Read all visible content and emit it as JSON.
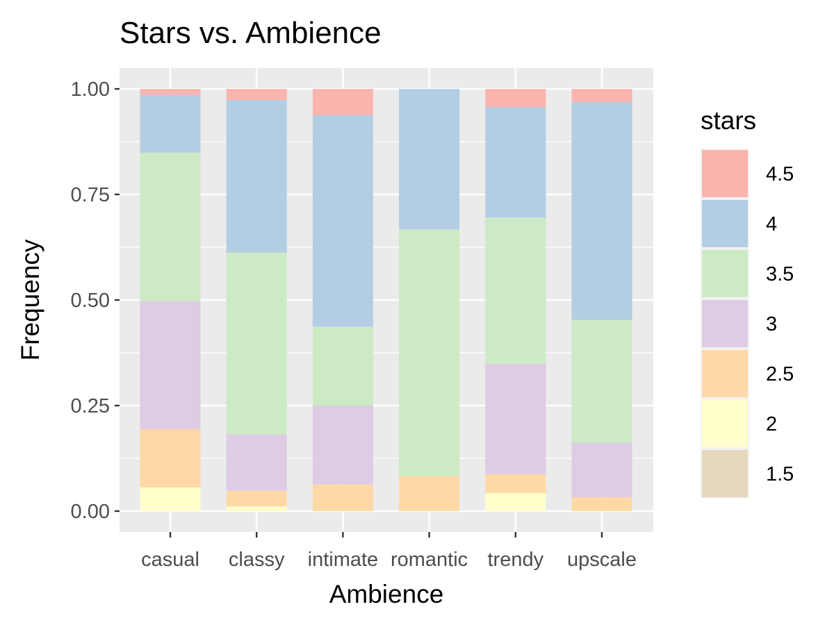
{
  "chart_data": {
    "type": "bar",
    "stacked": true,
    "title": "Stars vs. Ambience",
    "xlabel": "Ambience",
    "ylabel": "Frequency",
    "ylim": [
      0,
      1
    ],
    "yticks": [
      "0.00",
      "0.25",
      "0.50",
      "0.75",
      "1.00"
    ],
    "categories": [
      "casual",
      "classy",
      "intimate",
      "romantic",
      "trendy",
      "upscale"
    ],
    "legend_title": "stars",
    "legend_position": "right",
    "grid": true,
    "series": [
      {
        "name": "1.5",
        "color": "#E5D8BD",
        "values": [
          0.0,
          0.0,
          0.0,
          0.0,
          0.0,
          0.0
        ]
      },
      {
        "name": "2",
        "color": "#FFFFCC",
        "values": [
          0.056,
          0.011,
          0.0,
          0.0,
          0.043,
          0.0
        ]
      },
      {
        "name": "2.5",
        "color": "#FED9A6",
        "values": [
          0.138,
          0.037,
          0.063,
          0.083,
          0.044,
          0.033
        ]
      },
      {
        "name": "3",
        "color": "#DECBE4",
        "values": [
          0.303,
          0.134,
          0.187,
          0.0,
          0.261,
          0.129
        ]
      },
      {
        "name": "3.5",
        "color": "#CCEBC5",
        "values": [
          0.352,
          0.43,
          0.187,
          0.584,
          0.347,
          0.291
        ]
      },
      {
        "name": "4",
        "color": "#B3CDE3",
        "values": [
          0.137,
          0.362,
          0.501,
          0.333,
          0.262,
          0.516
        ]
      },
      {
        "name": "4.5",
        "color": "#FBB4AE",
        "values": [
          0.014,
          0.026,
          0.062,
          0.0,
          0.043,
          0.031
        ]
      }
    ]
  }
}
